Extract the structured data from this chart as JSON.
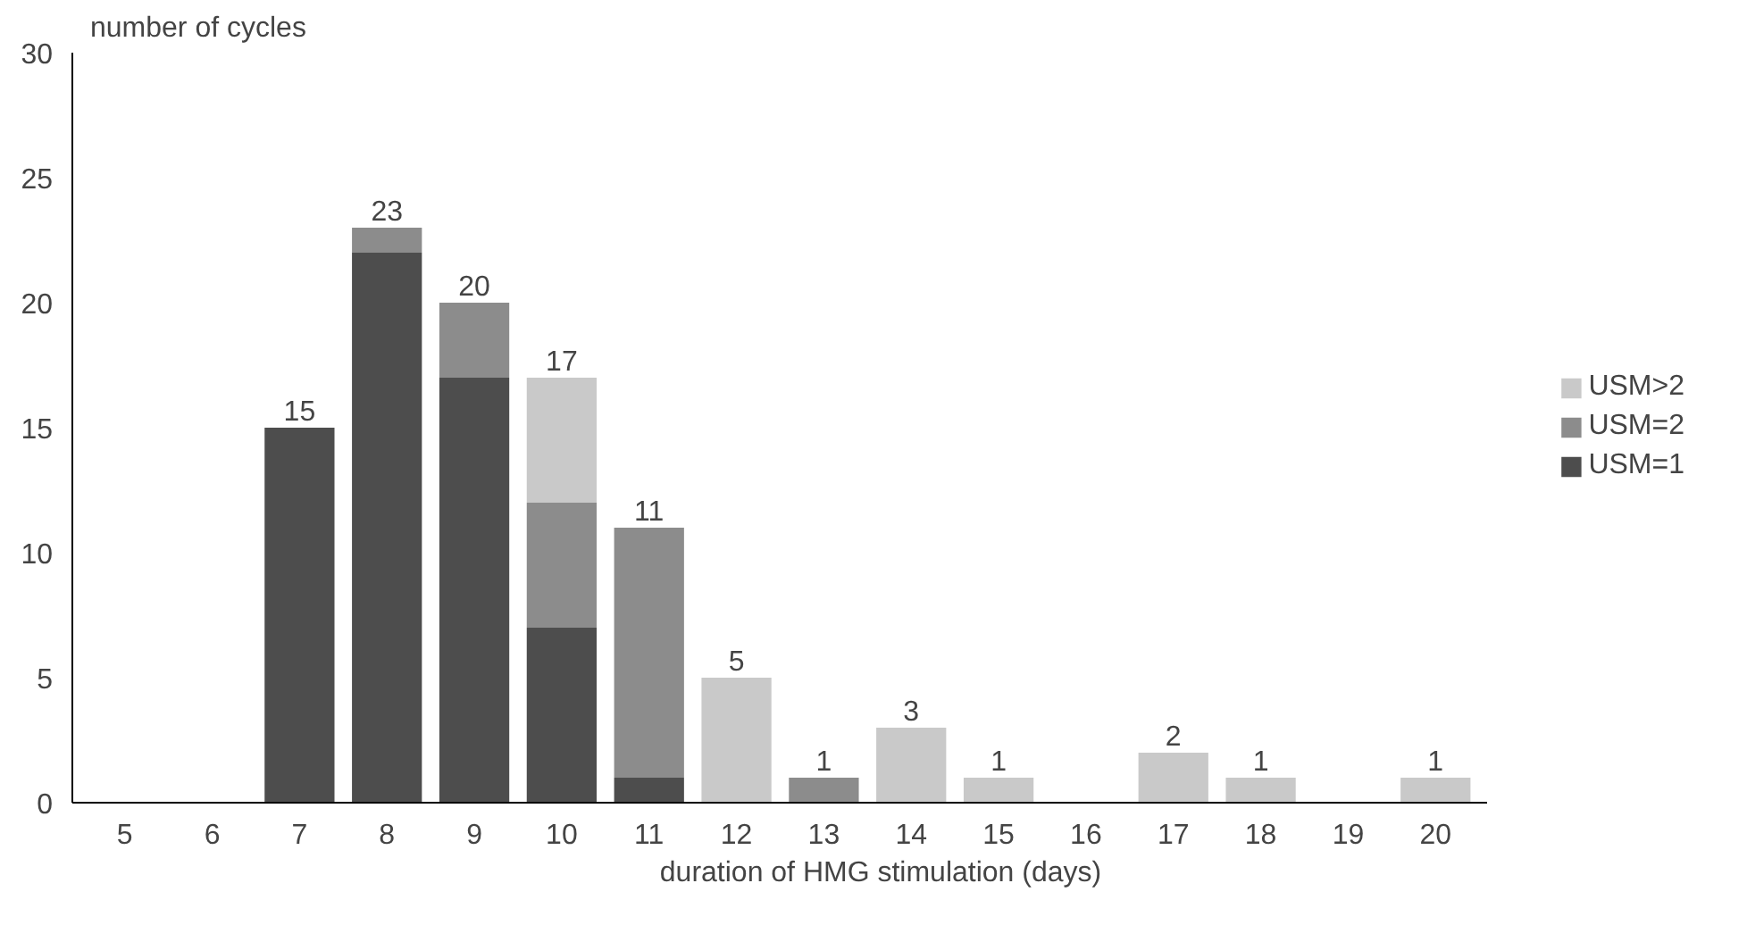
{
  "chart_data": {
    "type": "bar",
    "stacked": true,
    "xlabel": "duration of HMG stimulation (days)",
    "ylabel": "number of cycles",
    "categories": [
      "5",
      "6",
      "7",
      "8",
      "9",
      "10",
      "11",
      "12",
      "13",
      "14",
      "15",
      "16",
      "17",
      "18",
      "19",
      "20"
    ],
    "series": [
      {
        "name": "USM=1",
        "color": "#4d4d4d",
        "values": [
          0,
          0,
          15,
          22,
          17,
          7,
          1,
          0,
          0,
          0,
          0,
          0,
          0,
          0,
          0,
          0
        ]
      },
      {
        "name": "USM=2",
        "color": "#8c8c8c",
        "values": [
          0,
          0,
          0,
          1,
          3,
          5,
          10,
          0,
          1,
          0,
          0,
          0,
          0,
          0,
          0,
          0
        ]
      },
      {
        "name": "USM>2",
        "color": "#c9c9c9",
        "values": [
          0,
          0,
          0,
          0,
          0,
          5,
          0,
          5,
          0,
          3,
          1,
          0,
          2,
          1,
          0,
          1
        ]
      }
    ],
    "totals": [
      null,
      null,
      "15",
      "23",
      "20",
      "17",
      "11",
      "5",
      "1",
      "3",
      "1",
      null,
      "2",
      "1",
      null,
      "1"
    ],
    "ylim": [
      0,
      30
    ],
    "yticks": [
      0,
      5,
      10,
      15,
      20,
      25,
      30
    ],
    "grid": false,
    "legend": "right"
  }
}
